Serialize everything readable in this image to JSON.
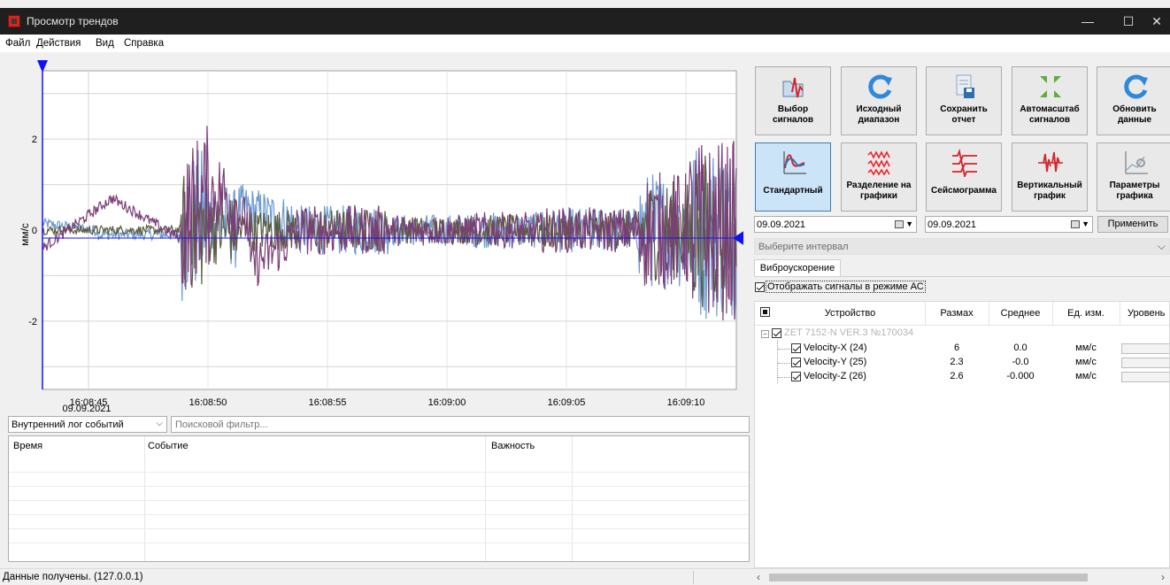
{
  "window": {
    "title": "Просмотр трендов",
    "minimize": "—",
    "maximize": "☐",
    "close": "✕"
  },
  "menu": {
    "file": "Файл",
    "actions": "Действия",
    "view": "Вид",
    "help": "Справка"
  },
  "chart_data": {
    "type": "line",
    "ylabel": "мм/с",
    "ylim": [
      -3.5,
      3.5
    ],
    "yticks": [
      2,
      0,
      -2
    ],
    "x_tick_labels": [
      "16:08:45",
      "16:08:50",
      "16:08:55",
      "16:09:00",
      "16:09:05",
      "16:09:10"
    ],
    "x_date_label": "09.09.2021",
    "grid": true,
    "series": [
      {
        "name": "Velocity-X (24)",
        "color": "#6d9bd1"
      },
      {
        "name": "Velocity-Y (25)",
        "color": "#5b5b3d"
      },
      {
        "name": "Velocity-Z (26)",
        "color": "#7b3e78"
      }
    ]
  },
  "log": {
    "select_value": "Внутренний лог событий",
    "search_placeholder": "Поисковой фильтр...",
    "columns": [
      "Время",
      "Событие",
      "Важность"
    ]
  },
  "status": {
    "text": "Данные получены. (127.0.0.1)"
  },
  "toolbar_row1": [
    {
      "label": "Выбор\nсигналов",
      "icon": "signal-select-icon"
    },
    {
      "label": "Исходный\nдиапазон",
      "icon": "refresh-icon"
    },
    {
      "label": "Сохранить\nотчет",
      "icon": "save-report-icon"
    },
    {
      "label": "Автомасштаб\nсигналов",
      "icon": "autoscale-icon"
    },
    {
      "label": "Обновить\nданные",
      "icon": "refresh-icon"
    }
  ],
  "toolbar_row2": [
    {
      "label": "Стандартный",
      "icon": "standard-chart-icon",
      "active": true
    },
    {
      "label": "Разделение на\nграфики",
      "icon": "split-chart-icon"
    },
    {
      "label": "Сейсмограмма",
      "icon": "seismogram-icon"
    },
    {
      "label": "Вертикальный\nграфик",
      "icon": "vertical-chart-icon"
    },
    {
      "label": "Параметры\nграфика",
      "icon": "chart-params-icon"
    }
  ],
  "dates": {
    "from": "09.09.2021",
    "to": "09.09.2021",
    "apply": "Применить"
  },
  "interval": {
    "placeholder": "Выберите интервал"
  },
  "tab": {
    "label": "Виброускорение"
  },
  "ac_mode": {
    "label": "Отображать сигналы в режиме АС",
    "checked": true
  },
  "signals": {
    "columns": {
      "device": "Устройство",
      "range": "Размах",
      "mean": "Среднее",
      "unit": "Ед. изм.",
      "level": "Уровень"
    },
    "device_name": "ZET 7152-N VER.3 №170034",
    "rows": [
      {
        "name": "Velocity-X (24)",
        "range": "6",
        "mean": "0.0",
        "unit": "мм/с"
      },
      {
        "name": "Velocity-Y (25)",
        "range": "2.3",
        "mean": "-0.0",
        "unit": "мм/с"
      },
      {
        "name": "Velocity-Z (26)",
        "range": "2.6",
        "mean": "-0.000",
        "unit": "мм/с"
      }
    ]
  }
}
